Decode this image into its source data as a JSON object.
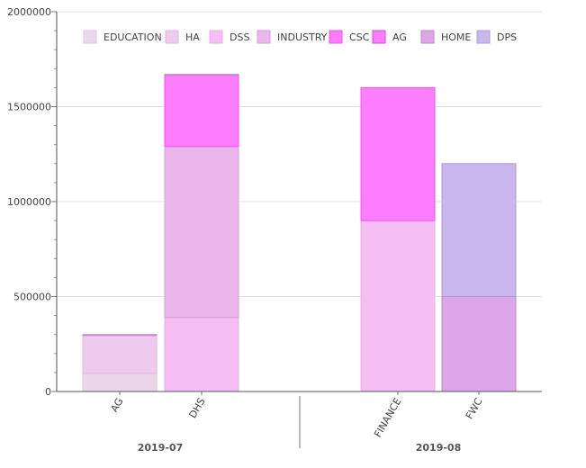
{
  "chart_data": {
    "type": "bar",
    "stacked": true,
    "ylim": [
      0,
      2000000
    ],
    "yticks": [
      0,
      500000,
      1000000,
      1500000,
      2000000
    ],
    "ytick_labels": [
      "0",
      "500000",
      "1000000",
      "1500000",
      "2000000"
    ],
    "legend_position": "top",
    "legend": [
      {
        "name": "EDUCATION",
        "color": "#ead8ea",
        "stroke": "#e0c6e0"
      },
      {
        "name": "HA",
        "color": "#eecbee",
        "stroke": "#e2b4e2"
      },
      {
        "name": "DSS",
        "color": "#f5bff5",
        "stroke": "#ecaaec"
      },
      {
        "name": "INDUSTRY",
        "color": "#ebb6eb",
        "stroke": "#de9ede"
      },
      {
        "name": "CSC",
        "color": "#ff7dff",
        "stroke": "#f050f0"
      },
      {
        "name": "AG",
        "color": "#ff7dff",
        "stroke": "#e040e0"
      },
      {
        "name": "HOME",
        "color": "#dca6e8",
        "stroke": "#c585d6"
      },
      {
        "name": "DPS",
        "color": "#c9b6ec",
        "stroke": "#b09ae0"
      }
    ],
    "groups": [
      {
        "label": "2019-07",
        "categories": [
          {
            "label": "AG",
            "segments": [
              {
                "series": "EDUCATION",
                "value": 95000
              },
              {
                "series": "HA",
                "value": 200000
              },
              {
                "series": "HOME",
                "value": 5000
              }
            ]
          },
          {
            "label": "DHS",
            "segments": [
              {
                "series": "DSS",
                "value": 390000
              },
              {
                "series": "INDUSTRY",
                "value": 900000
              },
              {
                "series": "CSC",
                "value": 375000
              },
              {
                "series": "HOME",
                "value": 5000
              }
            ]
          }
        ]
      },
      {
        "label": "2019-08",
        "categories": [
          {
            "label": "FINANCE",
            "segments": [
              {
                "series": "DSS",
                "value": 900000
              },
              {
                "series": "CSC",
                "value": 700000
              }
            ]
          },
          {
            "label": "FWC",
            "segments": [
              {
                "series": "HOME",
                "value": 500000
              },
              {
                "series": "DPS",
                "value": 700000
              }
            ]
          }
        ]
      }
    ]
  }
}
